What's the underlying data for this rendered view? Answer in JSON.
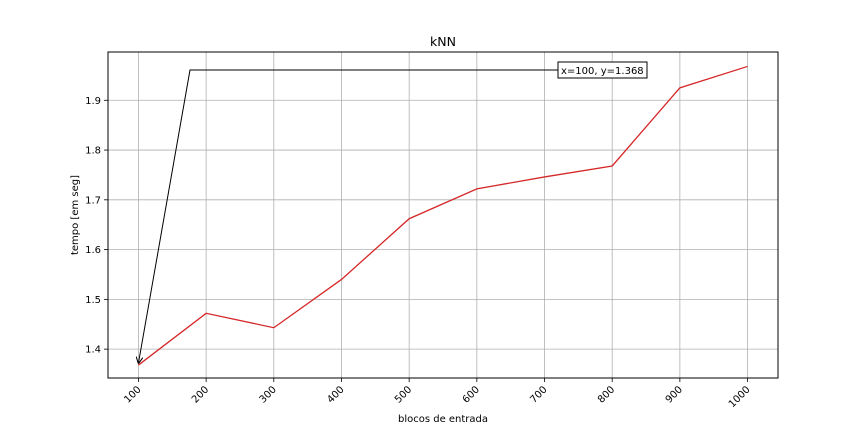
{
  "chart_data": {
    "type": "line",
    "title": "kNN",
    "xlabel": "blocos de entrada",
    "ylabel": "tempo [em seg]",
    "x": [
      100,
      200,
      300,
      400,
      500,
      600,
      700,
      800,
      900,
      1000
    ],
    "x_tick_labels": [
      "100",
      "200",
      "300",
      "400",
      "500",
      "600",
      "700",
      "800",
      "900",
      "1000"
    ],
    "y_tick_labels": [
      "1.4",
      "1.5",
      "1.6",
      "1.7",
      "1.8",
      "1.9"
    ],
    "y_ticks": [
      1.4,
      1.5,
      1.6,
      1.7,
      1.8,
      1.9
    ],
    "xlim": [
      55,
      1045
    ],
    "ylim": [
      1.342,
      1.997
    ],
    "grid": true,
    "series": [
      {
        "color": "#d62728",
        "values": [
          1.368,
          1.472,
          1.443,
          1.54,
          1.662,
          1.722,
          1.746,
          1.768,
          1.925,
          1.968
        ]
      }
    ],
    "annotation": {
      "text": "x=100, y=1.368",
      "point": {
        "x": 100,
        "y": 1.368
      }
    }
  }
}
